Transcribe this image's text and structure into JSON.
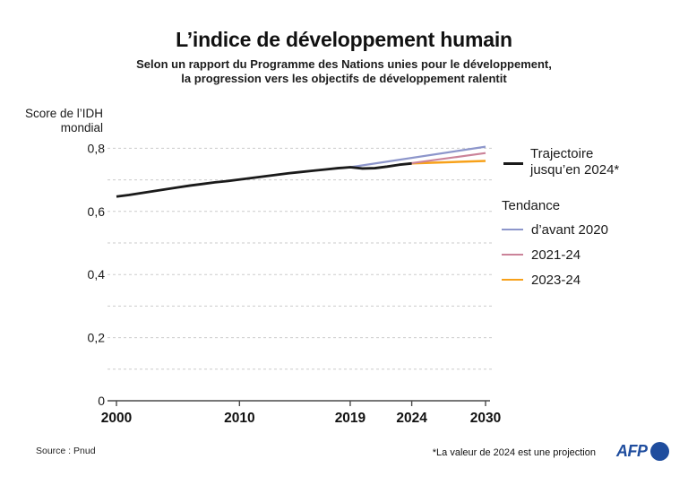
{
  "chart_data": {
    "type": "line",
    "title": "L’indice de développement humain",
    "subtitle_line1": "Selon un rapport du Programme des Nations unies pour le développement,",
    "subtitle_line2": "la progression vers les objectifs de développement ralentit",
    "ylabel_line1": "Score de l’IDH",
    "ylabel_line2": "mondial",
    "xlim": [
      2000,
      2030
    ],
    "ylim": [
      0,
      0.85
    ],
    "grid_on": true,
    "x_ticks": [
      2000,
      2010,
      2019,
      2024,
      2030
    ],
    "y_ticks": [
      {
        "value": 0,
        "label": "0"
      },
      {
        "value": 0.2,
        "label": "0,2"
      },
      {
        "value": 0.4,
        "label": "0,4"
      },
      {
        "value": 0.6,
        "label": "0,6"
      },
      {
        "value": 0.8,
        "label": "0,8"
      }
    ],
    "grid_values": [
      0.1,
      0.2,
      0.3,
      0.4,
      0.5,
      0.6,
      0.7,
      0.8
    ],
    "series": [
      {
        "name": "Trajectoire jusqu’en 2024*",
        "color": "#1a1a1a",
        "width": 2.8,
        "x": [
          2000,
          2001,
          2002,
          2003,
          2004,
          2005,
          2006,
          2007,
          2008,
          2009,
          2010,
          2011,
          2012,
          2013,
          2014,
          2015,
          2016,
          2017,
          2018,
          2019,
          2020,
          2021,
          2022,
          2023,
          2024
        ],
        "y": [
          0.647,
          0.652,
          0.658,
          0.664,
          0.67,
          0.676,
          0.682,
          0.687,
          0.692,
          0.696,
          0.701,
          0.706,
          0.711,
          0.716,
          0.721,
          0.725,
          0.729,
          0.733,
          0.737,
          0.74,
          0.736,
          0.737,
          0.742,
          0.748,
          0.752
        ]
      },
      {
        "name": "d’avant 2020",
        "color": "#8d96cb",
        "width": 2.2,
        "x": [
          2019,
          2030
        ],
        "y": [
          0.74,
          0.805
        ]
      },
      {
        "name": "2021-24",
        "color": "#cb8399",
        "width": 2.2,
        "x": [
          2021,
          2030
        ],
        "y": [
          0.737,
          0.785
        ]
      },
      {
        "name": "2023-24",
        "color": "#f7a11a",
        "width": 2.5,
        "x": [
          2024,
          2030
        ],
        "y": [
          0.752,
          0.76
        ]
      }
    ],
    "legend_position": "right"
  },
  "legend": {
    "trajectory_label_line1": "Trajectoire",
    "trajectory_label_line2": "jusqu’en 2024*",
    "trajectory_color": "#1a1a1a",
    "trend_header": "Tendance",
    "items": [
      {
        "label": "d’avant 2020",
        "color": "#8d96cb"
      },
      {
        "label": "2021-24",
        "color": "#cb8399"
      },
      {
        "label": "2023-24",
        "color": "#f7a11a"
      }
    ]
  },
  "footer": {
    "source": "Source : Pnud",
    "footnote": "*La valeur de 2024 est une projection",
    "logo_text": "AFP",
    "logo_color": "#1f4d9e"
  }
}
